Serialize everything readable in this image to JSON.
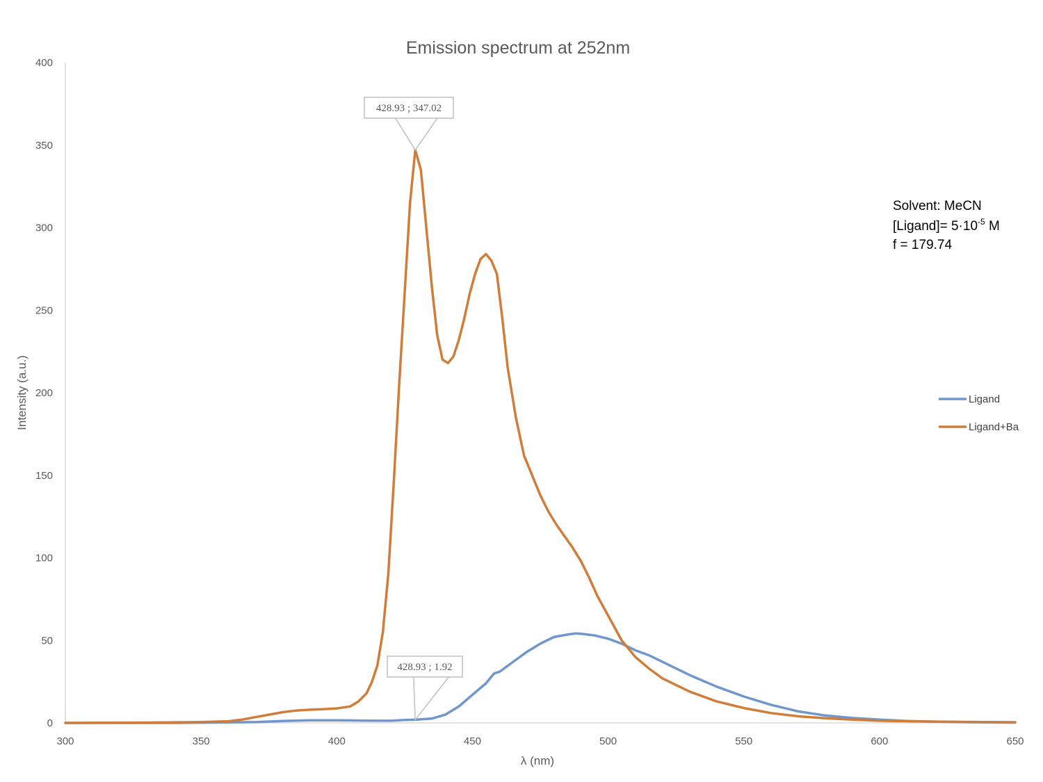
{
  "colors": {
    "ligand": "#6f97cd",
    "ligand_ba": "#d07d3a",
    "axis": "#d9d9d9",
    "text": "#595959",
    "callout_border": "#bfbfbf"
  },
  "chart_data": {
    "type": "line",
    "title": "Emission spectrum at 252nm",
    "xlabel": "λ (nm)",
    "ylabel": "Intensity (a.u.)",
    "xlim": [
      300,
      650
    ],
    "ylim": [
      0,
      400
    ],
    "xticks": [
      300,
      350,
      400,
      450,
      500,
      550,
      600,
      650
    ],
    "yticks": [
      0,
      50,
      100,
      150,
      200,
      250,
      300,
      350,
      400
    ],
    "grid": false,
    "legend_position": "right",
    "series": [
      {
        "name": "Ligand",
        "color": "#6f97cd",
        "points": [
          [
            300,
            0
          ],
          [
            320,
            0
          ],
          [
            340,
            0
          ],
          [
            360,
            0.3
          ],
          [
            370,
            0.5
          ],
          [
            380,
            1.2
          ],
          [
            390,
            1.6
          ],
          [
            400,
            1.6
          ],
          [
            410,
            1.4
          ],
          [
            420,
            1.3
          ],
          [
            425,
            1.8
          ],
          [
            428.93,
            1.92
          ],
          [
            435,
            2.6
          ],
          [
            440,
            5
          ],
          [
            445,
            10
          ],
          [
            450,
            17
          ],
          [
            455,
            24
          ],
          [
            458,
            30
          ],
          [
            460,
            31
          ],
          [
            465,
            37
          ],
          [
            470,
            43
          ],
          [
            475,
            48
          ],
          [
            480,
            52
          ],
          [
            485,
            53.5
          ],
          [
            488,
            54.2
          ],
          [
            490,
            54
          ],
          [
            495,
            53
          ],
          [
            500,
            51
          ],
          [
            505,
            48
          ],
          [
            510,
            44
          ],
          [
            515,
            41
          ],
          [
            520,
            37
          ],
          [
            525,
            33
          ],
          [
            530,
            29
          ],
          [
            540,
            22
          ],
          [
            550,
            16
          ],
          [
            560,
            11
          ],
          [
            570,
            7
          ],
          [
            580,
            4.5
          ],
          [
            590,
            3
          ],
          [
            600,
            2
          ],
          [
            610,
            1.2
          ],
          [
            620,
            0.8
          ],
          [
            630,
            0.5
          ],
          [
            640,
            0.3
          ],
          [
            650,
            0.2
          ]
        ]
      },
      {
        "name": "Ligand+Ba",
        "color": "#d07d3a",
        "points": [
          [
            300,
            0
          ],
          [
            330,
            0.2
          ],
          [
            350,
            0.5
          ],
          [
            360,
            1
          ],
          [
            365,
            2
          ],
          [
            370,
            3.5
          ],
          [
            375,
            5
          ],
          [
            380,
            6.5
          ],
          [
            385,
            7.5
          ],
          [
            390,
            8
          ],
          [
            395,
            8.3
          ],
          [
            400,
            8.8
          ],
          [
            405,
            10
          ],
          [
            408,
            13
          ],
          [
            411,
            18
          ],
          [
            413,
            25
          ],
          [
            415,
            35
          ],
          [
            417,
            55
          ],
          [
            419,
            90
          ],
          [
            421,
            145
          ],
          [
            423,
            205
          ],
          [
            425,
            260
          ],
          [
            427,
            315
          ],
          [
            428.93,
            347.02
          ],
          [
            431,
            335
          ],
          [
            433,
            300
          ],
          [
            435,
            265
          ],
          [
            437,
            235
          ],
          [
            439,
            220
          ],
          [
            441,
            218
          ],
          [
            443,
            222
          ],
          [
            445,
            232
          ],
          [
            447,
            245
          ],
          [
            449,
            260
          ],
          [
            451,
            272
          ],
          [
            453,
            281
          ],
          [
            455,
            284
          ],
          [
            457,
            280
          ],
          [
            459,
            272
          ],
          [
            461,
            245
          ],
          [
            463,
            215
          ],
          [
            466,
            185
          ],
          [
            469,
            162
          ],
          [
            472,
            150
          ],
          [
            475,
            138
          ],
          [
            478,
            128
          ],
          [
            481,
            120
          ],
          [
            484,
            113
          ],
          [
            487,
            106
          ],
          [
            490,
            98
          ],
          [
            493,
            88
          ],
          [
            496,
            77
          ],
          [
            500,
            65
          ],
          [
            505,
            50
          ],
          [
            510,
            40
          ],
          [
            515,
            33
          ],
          [
            520,
            27
          ],
          [
            530,
            19
          ],
          [
            540,
            13
          ],
          [
            550,
            9
          ],
          [
            560,
            6
          ],
          [
            570,
            4
          ],
          [
            580,
            2.8
          ],
          [
            590,
            2
          ],
          [
            600,
            1.3
          ],
          [
            620,
            0.8
          ],
          [
            640,
            0.5
          ],
          [
            650,
            0.4
          ]
        ]
      }
    ],
    "annotations": [
      {
        "label": "428.93 ; 347.02",
        "x": 428.93,
        "y": 347.02
      },
      {
        "label": "428.93 ; 1.92",
        "x": 428.93,
        "y": 1.92
      }
    ],
    "info_lines": [
      "Solvent: MeCN",
      "[Ligand]= 5·10",
      "f = 179.74"
    ],
    "info_superscript": "-5",
    "info_unit": " M"
  }
}
